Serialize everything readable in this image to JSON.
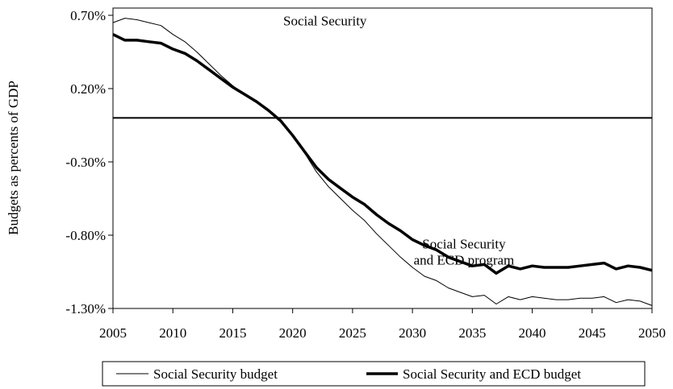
{
  "chart_data": {
    "type": "line",
    "title": "",
    "xlabel": "",
    "ylabel": "Budgets as percents of GDP",
    "xlim": [
      2005,
      2050
    ],
    "ylim": [
      -1.3,
      0.7
    ],
    "x_ticks": [
      2005,
      2010,
      2015,
      2020,
      2025,
      2030,
      2035,
      2040,
      2045,
      2050
    ],
    "y_ticks": [
      0.7,
      0.2,
      -0.3,
      -0.8,
      -1.3
    ],
    "x_tick_labels": [
      "2005",
      "2010",
      "2015",
      "2020",
      "2025",
      "2030",
      "2035",
      "2040",
      "2045",
      "2050"
    ],
    "y_tick_labels": [
      "0.70%",
      "0.20%",
      "-0.30%",
      "-0.80%",
      "-1.30%"
    ],
    "zero_line": 0,
    "grid": false,
    "legend_position": "bottom",
    "x": [
      2005,
      2006,
      2007,
      2008,
      2009,
      2010,
      2011,
      2012,
      2013,
      2014,
      2015,
      2016,
      2017,
      2018,
      2019,
      2020,
      2021,
      2022,
      2023,
      2024,
      2025,
      2026,
      2027,
      2028,
      2029,
      2030,
      2031,
      2032,
      2033,
      2034,
      2035,
      2036,
      2037,
      2038,
      2039,
      2040,
      2041,
      2042,
      2043,
      2044,
      2045,
      2046,
      2047,
      2048,
      2049,
      2050
    ],
    "series": [
      {
        "name": "Social Security budget",
        "color": "#000000",
        "weight": "thin",
        "values": [
          0.65,
          0.68,
          0.67,
          0.65,
          0.63,
          0.57,
          0.52,
          0.45,
          0.37,
          0.29,
          0.22,
          0.16,
          0.11,
          0.05,
          -0.02,
          -0.12,
          -0.24,
          -0.37,
          -0.47,
          -0.55,
          -0.63,
          -0.7,
          -0.79,
          -0.87,
          -0.95,
          -1.02,
          -1.08,
          -1.11,
          -1.16,
          -1.19,
          -1.22,
          -1.21,
          -1.27,
          -1.22,
          -1.24,
          -1.22,
          -1.23,
          -1.24,
          -1.24,
          -1.23,
          -1.23,
          -1.22,
          -1.26,
          -1.24,
          -1.25,
          -1.28
        ]
      },
      {
        "name": "Social Security and ECD budget",
        "color": "#000000",
        "weight": "thick",
        "values": [
          0.57,
          0.53,
          0.53,
          0.52,
          0.51,
          0.47,
          0.44,
          0.39,
          0.33,
          0.27,
          0.21,
          0.16,
          0.11,
          0.05,
          -0.02,
          -0.12,
          -0.23,
          -0.34,
          -0.42,
          -0.48,
          -0.54,
          -0.59,
          -0.66,
          -0.72,
          -0.77,
          -0.83,
          -0.87,
          -0.9,
          -0.95,
          -0.98,
          -1.01,
          -1.0,
          -1.06,
          -1.01,
          -1.03,
          -1.01,
          -1.02,
          -1.02,
          -1.02,
          -1.01,
          -1.0,
          -0.99,
          -1.03,
          -1.01,
          -1.02,
          -1.04
        ]
      }
    ],
    "annotations": [
      {
        "text": "Social Security",
        "x": 2022.7,
        "y": 0.63
      },
      {
        "text": "Social Security",
        "x": 2034.3,
        "y": -0.89
      },
      {
        "text": "and ECD program",
        "x": 2034.3,
        "y": -1.0
      }
    ]
  }
}
